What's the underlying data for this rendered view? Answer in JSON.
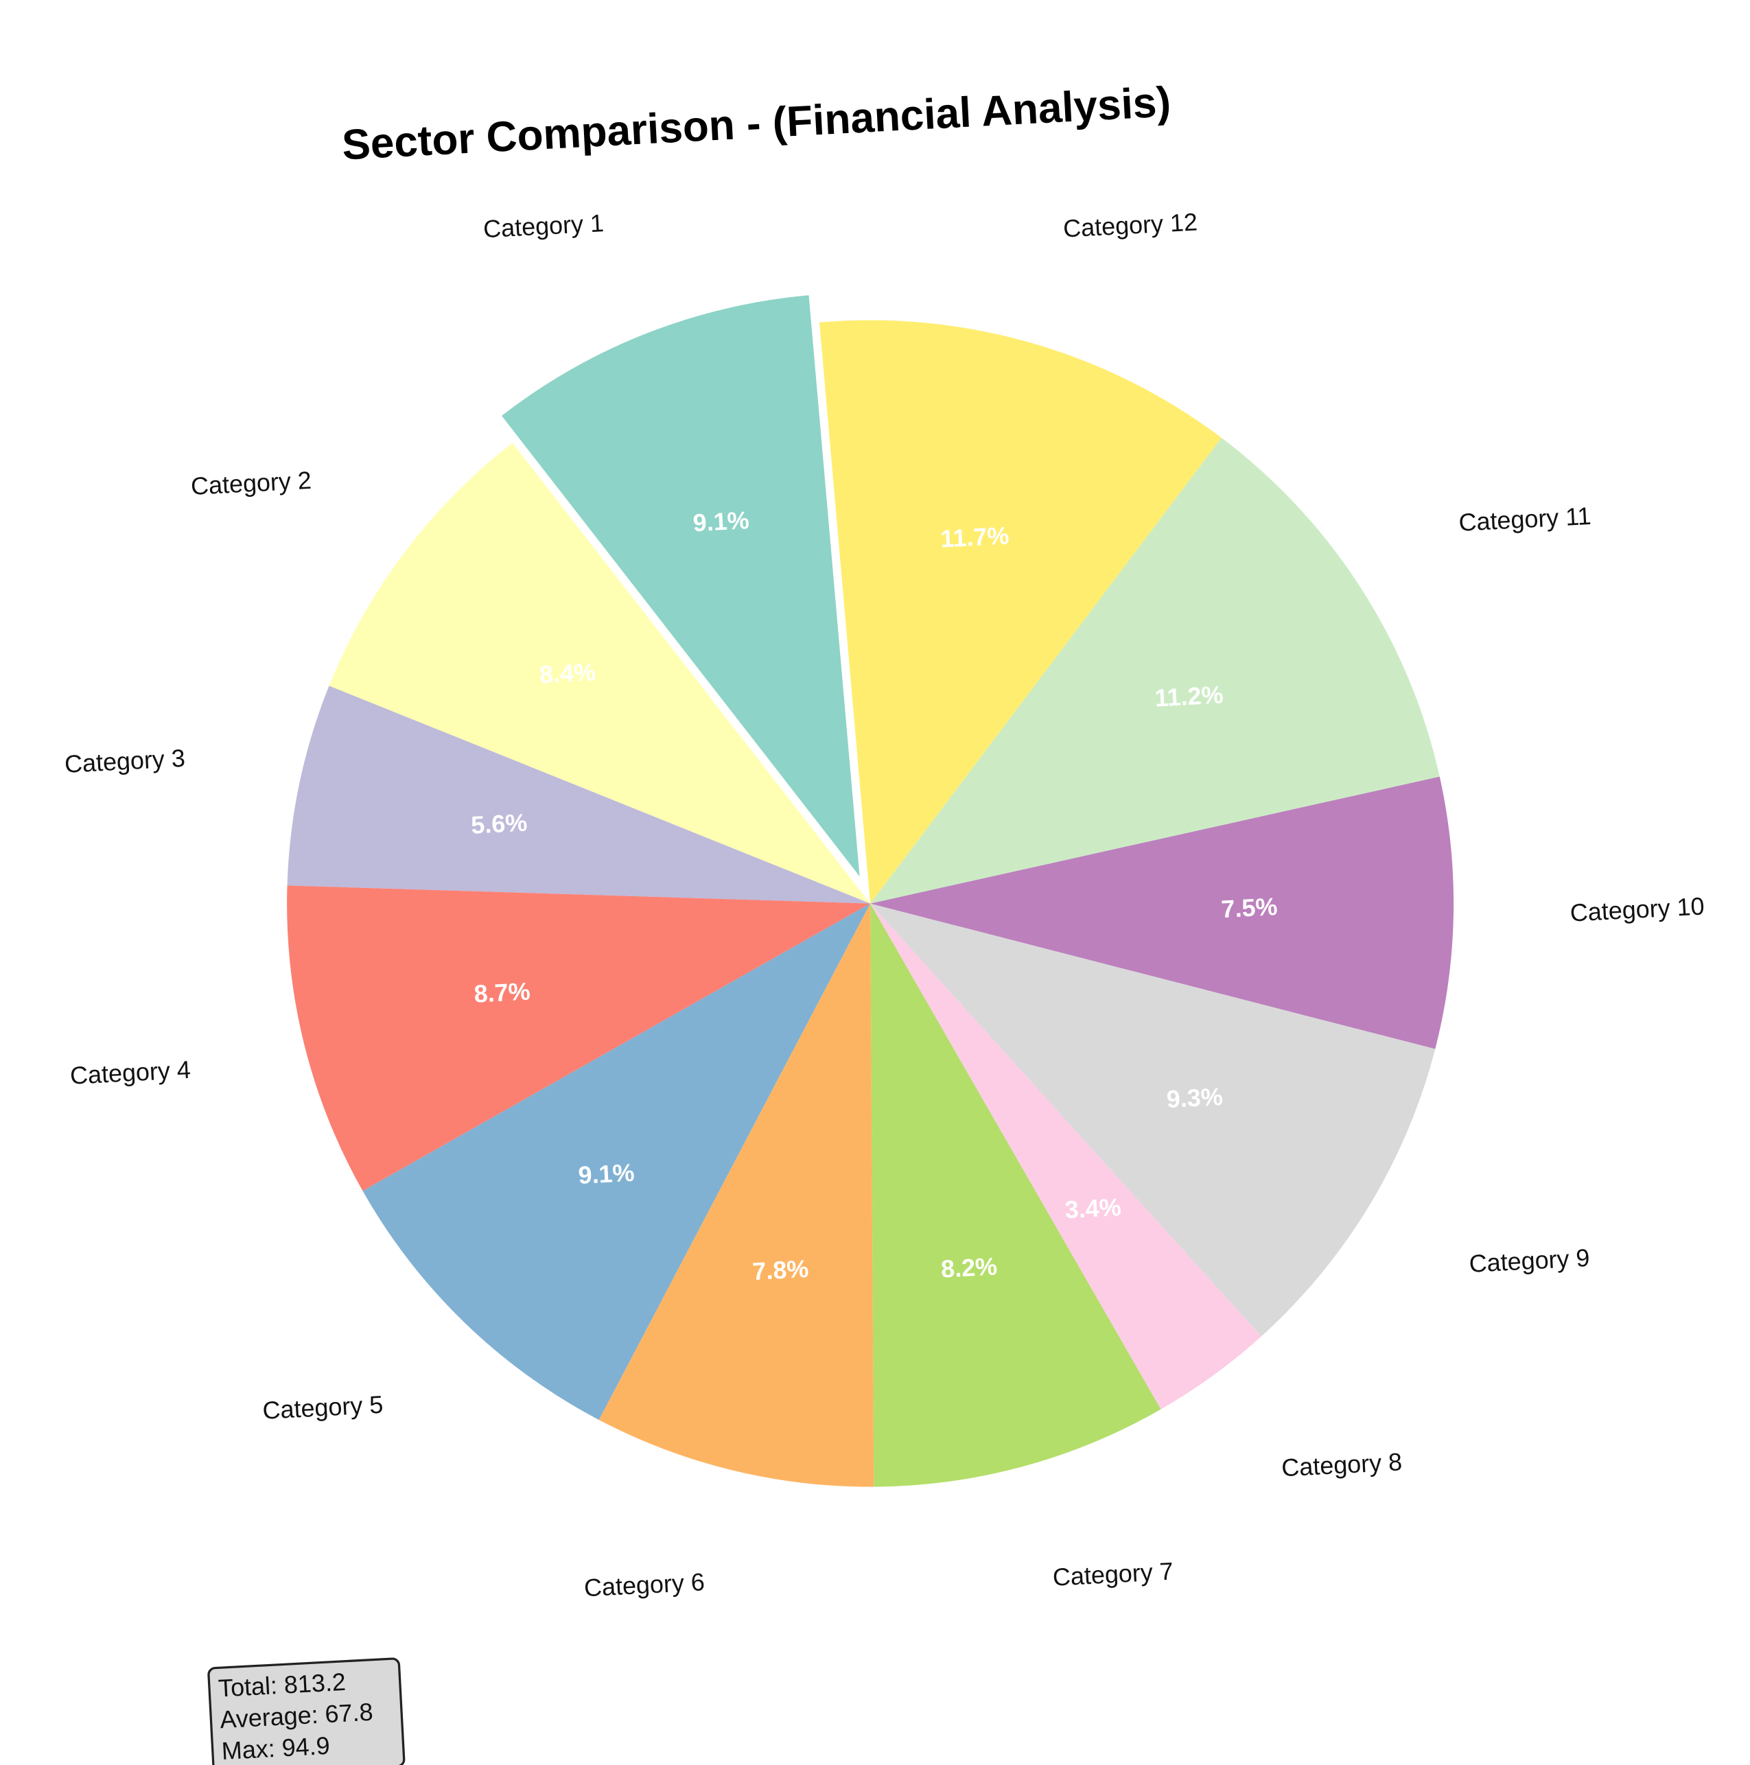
{
  "chart_data": {
    "type": "pie",
    "title": "Sector Comparison - (Financial Analysis)",
    "categories": [
      "Category 1",
      "Category 2",
      "Category 3",
      "Category 4",
      "Category 5",
      "Category 6",
      "Category 7",
      "Category 8",
      "Category 9",
      "Category 10",
      "Category 11",
      "Category 12"
    ],
    "values": [
      74.2,
      68.3,
      45.5,
      70.7,
      74.0,
      63.4,
      66.7,
      27.6,
      75.6,
      61.0,
      91.3,
      94.9
    ],
    "value_labels": [
      "9.1%",
      "8.4%",
      "5.6%",
      "8.7%",
      "9.1%",
      "7.8%",
      "8.2%",
      "3.4%",
      "9.3%",
      "7.5%",
      "11.2%",
      "11.7%"
    ],
    "colors": [
      "#8dd3c7",
      "#ffffb3",
      "#bebada",
      "#fb8072",
      "#80b1d3",
      "#fdb462",
      "#b3de69",
      "#fccde5",
      "#d9d9d9",
      "#bc80bd",
      "#ccebc5",
      "#ffed6f"
    ],
    "explode": [
      0.05,
      0,
      0,
      0,
      0,
      0,
      0,
      0,
      0,
      0,
      0,
      0
    ],
    "stats": [
      "Total: 813.2",
      "Average: 67.8",
      "Max: 94.9"
    ]
  }
}
